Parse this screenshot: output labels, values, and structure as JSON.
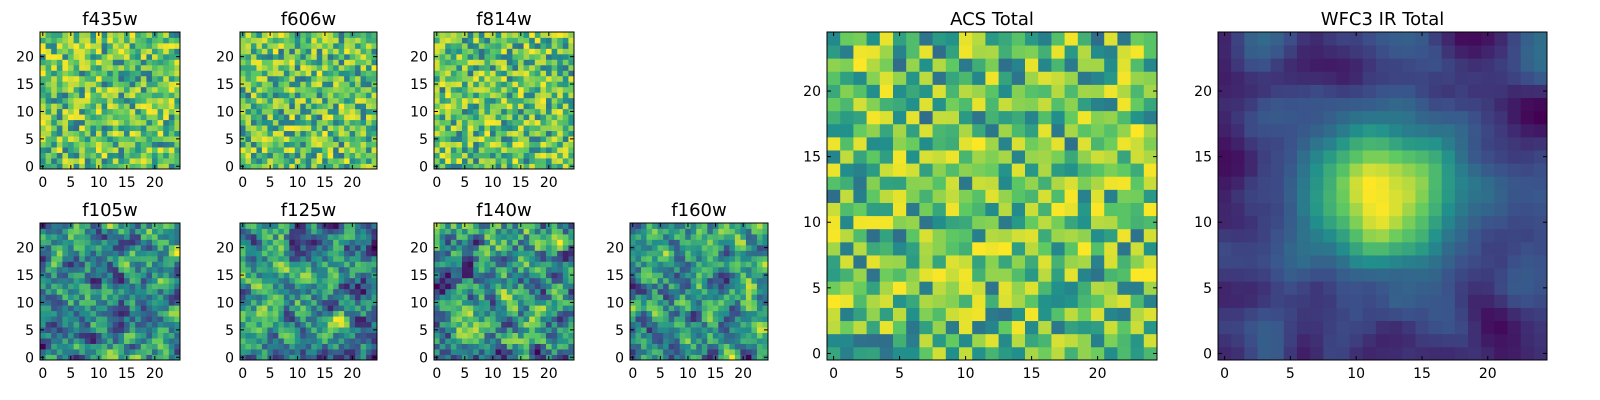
{
  "chart_data": [
    {
      "type": "heatmap",
      "title": "f435w",
      "xticks": [
        "0",
        "5",
        "10",
        "15",
        "20"
      ],
      "yticks": [
        "0",
        "5",
        "10",
        "15",
        "20"
      ],
      "xlim": [
        -0.5,
        24.5
      ],
      "ylim": [
        -0.5,
        24.5
      ],
      "grid_size": 25,
      "texture": "noise",
      "seed": 11
    },
    {
      "type": "heatmap",
      "title": "f606w",
      "xticks": [
        "0",
        "5",
        "10",
        "15",
        "20"
      ],
      "yticks": [
        "0",
        "5",
        "10",
        "15",
        "20"
      ],
      "xlim": [
        -0.5,
        24.5
      ],
      "ylim": [
        -0.5,
        24.5
      ],
      "grid_size": 25,
      "texture": "noise",
      "seed": 23
    },
    {
      "type": "heatmap",
      "title": "f814w",
      "xticks": [
        "0",
        "5",
        "10",
        "15",
        "20"
      ],
      "yticks": [
        "0",
        "5",
        "10",
        "15",
        "20"
      ],
      "xlim": [
        -0.5,
        24.5
      ],
      "ylim": [
        -0.5,
        24.5
      ],
      "grid_size": 25,
      "texture": "noise",
      "seed": 37
    },
    {
      "type": "heatmap",
      "title": "f105w",
      "xticks": [
        "0",
        "5",
        "10",
        "15",
        "20"
      ],
      "yticks": [
        "0",
        "5",
        "10",
        "15",
        "20"
      ],
      "xlim": [
        -0.5,
        24.5
      ],
      "ylim": [
        -0.5,
        24.5
      ],
      "grid_size": 25,
      "texture": "smooth",
      "seed": 41
    },
    {
      "type": "heatmap",
      "title": "f125w",
      "xticks": [
        "0",
        "5",
        "10",
        "15",
        "20"
      ],
      "yticks": [
        "0",
        "5",
        "10",
        "15",
        "20"
      ],
      "xlim": [
        -0.5,
        24.5
      ],
      "ylim": [
        -0.5,
        24.5
      ],
      "grid_size": 25,
      "texture": "smooth",
      "seed": 53
    },
    {
      "type": "heatmap",
      "title": "f140w",
      "xticks": [
        "0",
        "5",
        "10",
        "15",
        "20"
      ],
      "yticks": [
        "0",
        "5",
        "10",
        "15",
        "20"
      ],
      "xlim": [
        -0.5,
        24.5
      ],
      "ylim": [
        -0.5,
        24.5
      ],
      "grid_size": 25,
      "texture": "smooth",
      "seed": 67
    },
    {
      "type": "heatmap",
      "title": "f160w",
      "xticks": [
        "0",
        "5",
        "10",
        "15",
        "20"
      ],
      "yticks": [
        "0",
        "5",
        "10",
        "15",
        "20"
      ],
      "xlim": [
        -0.5,
        24.5
      ],
      "ylim": [
        -0.5,
        24.5
      ],
      "grid_size": 25,
      "texture": "smooth",
      "seed": 79
    },
    {
      "type": "heatmap",
      "title": "ACS Total",
      "xticks": [
        "0",
        "5",
        "10",
        "15",
        "20"
      ],
      "yticks": [
        "0",
        "5",
        "10",
        "15",
        "20"
      ],
      "xlim": [
        -0.5,
        24.5
      ],
      "ylim": [
        -0.5,
        24.5
      ],
      "grid_size": 25,
      "texture": "noise",
      "seed": 97
    },
    {
      "type": "heatmap",
      "title": "WFC3 IR Total",
      "xticks": [
        "0",
        "5",
        "10",
        "15",
        "20"
      ],
      "yticks": [
        "0",
        "5",
        "10",
        "15",
        "20"
      ],
      "xlim": [
        -0.5,
        24.5
      ],
      "ylim": [
        -0.5,
        24.5
      ],
      "grid_size": 25,
      "texture": "source",
      "seed": 113
    }
  ],
  "colormap": [
    "#440154",
    "#3b528b",
    "#21918c",
    "#5ec962",
    "#fde725"
  ]
}
